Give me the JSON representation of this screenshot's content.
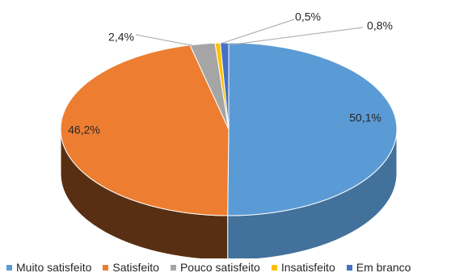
{
  "chart_data": {
    "type": "pie",
    "style": "3d",
    "categories": [
      "Muito satisfeito",
      "Satisfeito",
      "Pouco satisfeito",
      "Insatisfeito",
      "Em branco"
    ],
    "values": [
      50.1,
      46.2,
      2.4,
      0.5,
      0.8
    ],
    "labels": [
      "50,1%",
      "46,2%",
      "2,4%",
      "0,5%",
      "0,8%"
    ],
    "colors": [
      "#5B9BD5",
      "#ED7D31",
      "#A5A5A5",
      "#FFC000",
      "#4472C4"
    ],
    "legend_position": "bottom"
  }
}
